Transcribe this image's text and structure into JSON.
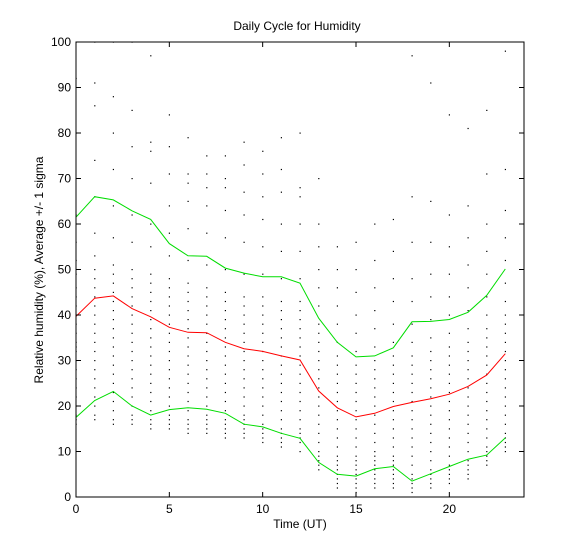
{
  "chart_data": {
    "type": "line",
    "title": "Daily Cycle for Humidity",
    "xlabel": "Time (UT)",
    "ylabel": "Relative humidity (%), Average +/- 1 sigma",
    "xlim": [
      0,
      24
    ],
    "ylim": [
      0,
      100
    ],
    "xticks": [
      0,
      5,
      10,
      15,
      20
    ],
    "yticks": [
      0,
      10,
      20,
      30,
      40,
      50,
      60,
      70,
      80,
      90,
      100
    ],
    "grid": false,
    "legend": "none",
    "x": [
      0,
      1,
      2,
      3,
      4,
      5,
      6,
      7,
      8,
      9,
      10,
      11,
      12,
      13,
      14,
      15,
      16,
      17,
      18,
      19,
      20,
      21,
      22,
      23
    ],
    "series": [
      {
        "role": "average",
        "color": "#ff0000",
        "values": [
          39.7,
          43.7,
          44.2,
          41.4,
          39.6,
          37.3,
          36.2,
          36.1,
          34.0,
          32.6,
          32.0,
          31.0,
          30.1,
          23.3,
          19.6,
          17.6,
          18.4,
          19.9,
          20.8,
          21.6,
          22.6,
          24.3,
          26.8,
          31.5
        ]
      },
      {
        "role": "plus-1-sigma",
        "color": "#00dd00",
        "values": [
          61.5,
          66.0,
          65.3,
          62.9,
          61.0,
          55.7,
          53.0,
          52.9,
          50.3,
          49.2,
          48.4,
          48.4,
          47.0,
          39.3,
          34.0,
          30.8,
          31.0,
          32.8,
          38.5,
          38.6,
          39.0,
          40.6,
          44.3,
          50.1
        ]
      },
      {
        "role": "minus-1-sigma",
        "color": "#00dd00",
        "values": [
          17.5,
          21.2,
          23.2,
          20.0,
          18.0,
          19.2,
          19.6,
          19.3,
          18.4,
          16.0,
          15.4,
          14.0,
          12.9,
          7.6,
          5.0,
          4.6,
          6.2,
          6.7,
          3.5,
          5.1,
          6.7,
          8.3,
          9.2,
          13.0
        ]
      }
    ],
    "scatter": {
      "color": "#000000",
      "x": [
        0,
        0,
        0,
        0,
        0,
        0,
        0,
        0,
        0,
        0,
        0,
        0,
        0,
        0,
        0,
        0,
        0,
        0,
        0,
        0,
        0,
        0,
        0,
        0,
        0,
        1,
        1,
        1,
        1,
        1,
        1,
        1,
        1,
        1,
        1,
        1,
        1,
        1,
        1,
        1,
        1,
        1,
        1,
        1,
        1,
        1,
        1,
        1,
        1,
        1,
        2,
        2,
        2,
        2,
        2,
        2,
        2,
        2,
        2,
        2,
        2,
        2,
        2,
        2,
        2,
        2,
        2,
        2,
        2,
        2,
        2,
        2,
        2,
        2,
        2,
        3,
        3,
        3,
        3,
        3,
        3,
        3,
        3,
        3,
        3,
        3,
        3,
        3,
        3,
        3,
        3,
        3,
        3,
        3,
        3,
        3,
        3,
        3,
        3,
        3,
        4,
        4,
        4,
        4,
        4,
        4,
        4,
        4,
        4,
        4,
        4,
        4,
        4,
        4,
        4,
        4,
        4,
        4,
        4,
        4,
        4,
        4,
        4,
        4,
        4,
        5,
        5,
        5,
        5,
        5,
        5,
        5,
        5,
        5,
        5,
        5,
        5,
        5,
        5,
        5,
        5,
        5,
        5,
        5,
        5,
        5,
        5,
        5,
        5,
        5,
        6,
        6,
        6,
        6,
        6,
        6,
        6,
        6,
        6,
        6,
        6,
        6,
        6,
        6,
        6,
        6,
        6,
        6,
        6,
        6,
        6,
        6,
        6,
        6,
        6,
        7,
        7,
        7,
        7,
        7,
        7,
        7,
        7,
        7,
        7,
        7,
        7,
        7,
        7,
        7,
        7,
        7,
        7,
        7,
        7,
        7,
        7,
        7,
        7,
        7,
        8,
        8,
        8,
        8,
        8,
        8,
        8,
        8,
        8,
        8,
        8,
        8,
        8,
        8,
        8,
        8,
        8,
        8,
        8,
        8,
        8,
        8,
        8,
        8,
        8,
        9,
        9,
        9,
        9,
        9,
        9,
        9,
        9,
        9,
        9,
        9,
        9,
        9,
        9,
        9,
        9,
        9,
        9,
        9,
        9,
        9,
        9,
        9,
        9,
        9,
        10,
        10,
        10,
        10,
        10,
        10,
        10,
        10,
        10,
        10,
        10,
        10,
        10,
        10,
        10,
        10,
        10,
        10,
        10,
        10,
        10,
        10,
        10,
        10,
        10,
        11,
        11,
        11,
        11,
        11,
        11,
        11,
        11,
        11,
        11,
        11,
        11,
        11,
        11,
        11,
        11,
        11,
        11,
        11,
        11,
        11,
        11,
        11,
        11,
        11,
        12,
        12,
        12,
        12,
        12,
        12,
        12,
        12,
        12,
        12,
        12,
        12,
        12,
        12,
        12,
        12,
        12,
        12,
        12,
        12,
        12,
        12,
        12,
        12,
        12,
        13,
        13,
        13,
        13,
        13,
        13,
        13,
        13,
        13,
        13,
        13,
        13,
        13,
        13,
        13,
        13,
        13,
        13,
        13,
        13,
        13,
        13,
        13,
        13,
        13,
        14,
        14,
        14,
        14,
        14,
        14,
        14,
        14,
        14,
        14,
        14,
        14,
        14,
        14,
        14,
        14,
        14,
        14,
        14,
        14,
        14,
        14,
        14,
        14,
        14,
        15,
        15,
        15,
        15,
        15,
        15,
        15,
        15,
        15,
        15,
        15,
        15,
        15,
        15,
        15,
        15,
        15,
        15,
        15,
        15,
        15,
        15,
        15,
        15,
        15,
        16,
        16,
        16,
        16,
        16,
        16,
        16,
        16,
        16,
        16,
        16,
        16,
        16,
        16,
        16,
        16,
        16,
        16,
        16,
        16,
        16,
        16,
        16,
        16,
        16,
        17,
        17,
        17,
        17,
        17,
        17,
        17,
        17,
        17,
        17,
        17,
        17,
        17,
        17,
        17,
        17,
        17,
        17,
        17,
        17,
        17,
        17,
        17,
        17,
        17,
        18,
        18,
        18,
        18,
        18,
        18,
        18,
        18,
        18,
        18,
        18,
        18,
        18,
        18,
        18,
        18,
        18,
        18,
        18,
        18,
        18,
        18,
        18,
        18,
        18,
        19,
        19,
        19,
        19,
        19,
        19,
        19,
        19,
        19,
        19,
        19,
        19,
        19,
        19,
        19,
        19,
        19,
        19,
        19,
        19,
        19,
        19,
        19,
        19,
        19,
        20,
        20,
        20,
        20,
        20,
        20,
        20,
        20,
        20,
        20,
        20,
        20,
        20,
        20,
        20,
        20,
        20,
        20,
        20,
        20,
        20,
        20,
        20,
        20,
        20,
        21,
        21,
        21,
        21,
        21,
        21,
        21,
        21,
        21,
        21,
        21,
        21,
        21,
        21,
        21,
        21,
        21,
        21,
        21,
        21,
        21,
        21,
        21,
        21,
        21,
        22,
        22,
        22,
        22,
        22,
        22,
        22,
        22,
        22,
        22,
        22,
        22,
        22,
        22,
        22,
        22,
        22,
        22,
        22,
        22,
        22,
        22,
        22,
        22,
        22,
        23,
        23,
        23,
        23,
        23,
        23,
        23,
        23,
        23,
        23,
        23,
        23,
        23,
        23,
        23,
        23,
        23,
        23,
        23,
        23,
        23,
        23,
        23,
        23,
        23
      ],
      "y": [
        100,
        92,
        80,
        62,
        56,
        52,
        49,
        46,
        44,
        42,
        40,
        38,
        36,
        34,
        33,
        32,
        30,
        28,
        26,
        24,
        22,
        20,
        18,
        17,
        16,
        100,
        91,
        86,
        74,
        66,
        58,
        53,
        50,
        48,
        46,
        44,
        42,
        40,
        38,
        36,
        34,
        32,
        30,
        28,
        26,
        24,
        22,
        20,
        18,
        17,
        100,
        88,
        80,
        72,
        64,
        57,
        51,
        49,
        47,
        45,
        43,
        41,
        39,
        37,
        35,
        33,
        31,
        29,
        27,
        25,
        23,
        21,
        19,
        17,
        16,
        100,
        85,
        77,
        70,
        62,
        56,
        50,
        48,
        46,
        44,
        42,
        40,
        38,
        36,
        34,
        32,
        30,
        28,
        26,
        24,
        22,
        20,
        18,
        17,
        16,
        97,
        78,
        76,
        69,
        60,
        55,
        49,
        47,
        45,
        43,
        41,
        39,
        37,
        35,
        33,
        31,
        29,
        27,
        25,
        23,
        21,
        19,
        17,
        16,
        15,
        84,
        77,
        71,
        64,
        58,
        53,
        48,
        46,
        44,
        42,
        40,
        38,
        36,
        34,
        32,
        30,
        28,
        26,
        24,
        22,
        20,
        18,
        17,
        16,
        15,
        79,
        71,
        69,
        65,
        59,
        52,
        47,
        45,
        43,
        41,
        39,
        37,
        35,
        33,
        31,
        29,
        27,
        25,
        23,
        21,
        19,
        17,
        16,
        15,
        14,
        75,
        71,
        68,
        64,
        58,
        51,
        46,
        44,
        42,
        40,
        38,
        36,
        34,
        32,
        30,
        28,
        26,
        24,
        22,
        20,
        18,
        17,
        16,
        15,
        14,
        75,
        70,
        68,
        63,
        57,
        50,
        45,
        43,
        41,
        39,
        37,
        35,
        33,
        31,
        29,
        27,
        25,
        23,
        21,
        19,
        17,
        16,
        15,
        14,
        13,
        78,
        73,
        67,
        62,
        56,
        49,
        44,
        42,
        40,
        38,
        36,
        34,
        32,
        30,
        28,
        26,
        24,
        22,
        20,
        18,
        17,
        16,
        15,
        14,
        13,
        76,
        71,
        66,
        61,
        55,
        49,
        44,
        42,
        40,
        38,
        36,
        34,
        32,
        30,
        28,
        26,
        24,
        22,
        20,
        18,
        16,
        15,
        14,
        13,
        12,
        79,
        72,
        67,
        60,
        54,
        48,
        43,
        41,
        39,
        37,
        35,
        33,
        31,
        29,
        27,
        25,
        23,
        21,
        19,
        17,
        15,
        14,
        13,
        12,
        11,
        80,
        68,
        66,
        60,
        54,
        48,
        43,
        41,
        39,
        37,
        35,
        33,
        31,
        29,
        27,
        25,
        23,
        21,
        19,
        17,
        15,
        14,
        13,
        12,
        10,
        70,
        60,
        55,
        50,
        46,
        42,
        38,
        36,
        34,
        32,
        30,
        28,
        26,
        24,
        22,
        20,
        18,
        16,
        14,
        12,
        10,
        9,
        8,
        7,
        6,
        55,
        50,
        46,
        42,
        38,
        34,
        31,
        29,
        27,
        25,
        23,
        21,
        19,
        17,
        15,
        13,
        11,
        9,
        8,
        7,
        6,
        5,
        4,
        3,
        2,
        56,
        50,
        45,
        40,
        36,
        32,
        29,
        27,
        25,
        23,
        21,
        19,
        17,
        15,
        13,
        11,
        9,
        8,
        7,
        6,
        5,
        4,
        3,
        2,
        1,
        60,
        52,
        46,
        41,
        37,
        33,
        30,
        28,
        26,
        24,
        22,
        20,
        18,
        16,
        14,
        12,
        10,
        9,
        8,
        7,
        6,
        5,
        4,
        3,
        2,
        61,
        54,
        48,
        43,
        38,
        34,
        31,
        29,
        27,
        25,
        23,
        21,
        19,
        17,
        15,
        13,
        11,
        9,
        8,
        7,
        6,
        5,
        4,
        3,
        2,
        97,
        66,
        56,
        48,
        43,
        38,
        34,
        31,
        29,
        27,
        25,
        23,
        21,
        19,
        17,
        15,
        13,
        11,
        9,
        7,
        5,
        4,
        3,
        2,
        1,
        91,
        65,
        56,
        49,
        44,
        39,
        35,
        32,
        30,
        28,
        26,
        24,
        22,
        20,
        18,
        16,
        14,
        12,
        10,
        8,
        6,
        5,
        4,
        3,
        2,
        84,
        62,
        55,
        49,
        44,
        40,
        36,
        33,
        31,
        29,
        27,
        25,
        23,
        21,
        19,
        17,
        15,
        13,
        11,
        9,
        7,
        6,
        5,
        4,
        3,
        81,
        64,
        57,
        51,
        46,
        41,
        37,
        34,
        32,
        30,
        28,
        26,
        24,
        22,
        20,
        18,
        16,
        14,
        12,
        10,
        8,
        7,
        6,
        5,
        4,
        85,
        71,
        60,
        54,
        49,
        44,
        40,
        37,
        35,
        33,
        31,
        29,
        27,
        25,
        23,
        21,
        19,
        17,
        15,
        13,
        11,
        10,
        9,
        8,
        7,
        98,
        72,
        63,
        57,
        52,
        47,
        43,
        40,
        38,
        36,
        34,
        32,
        30,
        28,
        26,
        24,
        22,
        20,
        18,
        16,
        14,
        13,
        12,
        11,
        10
      ]
    }
  }
}
